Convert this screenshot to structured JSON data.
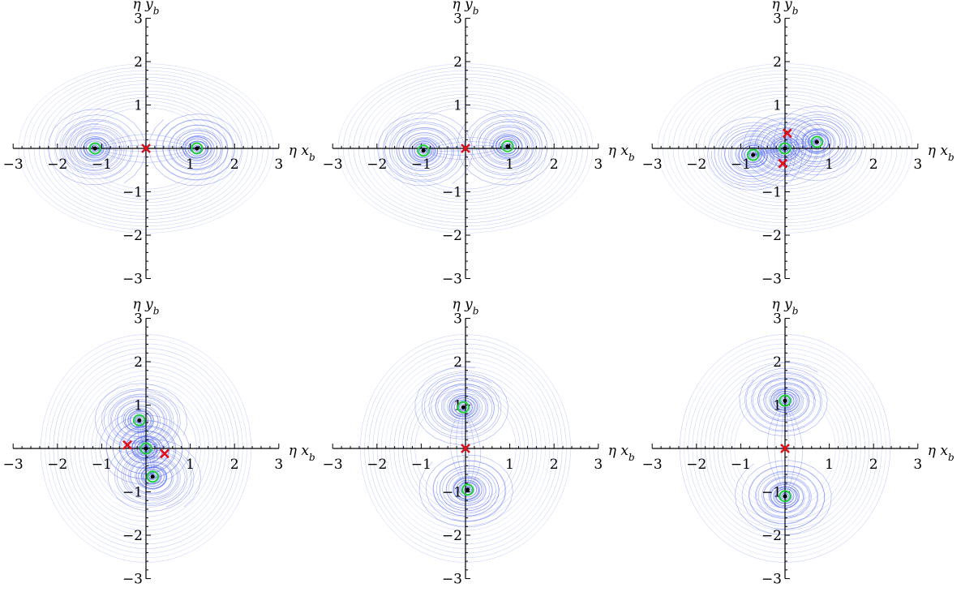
{
  "figure": {
    "colors": {
      "flow": "#5a6ff0",
      "node": "#1010a0",
      "fixed_point_center": "#000000",
      "fixed_point_ring": "#1fd13a",
      "saddle": "#e0101a",
      "axis": "#000000"
    }
  },
  "chart_data": [
    {
      "type": "scatter",
      "panel": "top-left",
      "xlabel": "η x_b",
      "ylabel": "η y_b",
      "xlim": [
        -3,
        3
      ],
      "ylim": [
        -3,
        3
      ],
      "x_ticks": [
        "−3",
        "−2",
        "−1",
        "1",
        "2",
        "3"
      ],
      "y_ticks": [
        "3",
        "2",
        "1",
        "−1",
        "−2",
        "−3"
      ],
      "grid": false,
      "stable_points": [
        {
          "x": -1.15,
          "y": 0.0
        },
        {
          "x": 1.15,
          "y": 0.0
        }
      ],
      "saddle_points": [
        {
          "x": 0.0,
          "y": 0.0
        }
      ]
    },
    {
      "type": "scatter",
      "panel": "top-middle",
      "xlabel": "η x_b",
      "ylabel": "η y_b",
      "xlim": [
        -3,
        3
      ],
      "ylim": [
        -3,
        3
      ],
      "x_ticks": [
        "−3",
        "−2",
        "−1",
        "1",
        "2",
        "3"
      ],
      "y_ticks": [
        "3",
        "2",
        "1",
        "−1",
        "−2",
        "−3"
      ],
      "grid": false,
      "stable_points": [
        {
          "x": -0.95,
          "y": -0.05
        },
        {
          "x": 0.95,
          "y": 0.05
        }
      ],
      "saddle_points": [
        {
          "x": 0.0,
          "y": 0.0
        }
      ]
    },
    {
      "type": "scatter",
      "panel": "top-right",
      "xlabel": "η x_b",
      "ylabel": "η y_b",
      "xlim": [
        -3,
        3
      ],
      "ylim": [
        -3,
        3
      ],
      "x_ticks": [
        "−3",
        "−2",
        "−1",
        "1",
        "2",
        "3"
      ],
      "y_ticks": [
        "3",
        "2",
        "1",
        "−1",
        "−2",
        "−3"
      ],
      "grid": false,
      "stable_points": [
        {
          "x": -0.72,
          "y": -0.15
        },
        {
          "x": 0.72,
          "y": 0.15
        },
        {
          "x": 0.0,
          "y": 0.0
        }
      ],
      "saddle_points": [
        {
          "x": 0.05,
          "y": 0.35
        },
        {
          "x": -0.05,
          "y": -0.35
        }
      ]
    },
    {
      "type": "scatter",
      "panel": "bottom-left",
      "xlabel": "η x_b",
      "ylabel": "η y_b",
      "xlim": [
        -3,
        3
      ],
      "ylim": [
        -3,
        3
      ],
      "x_ticks": [
        "−3",
        "−2",
        "−1",
        "1",
        "2",
        "3"
      ],
      "y_ticks": [
        "3",
        "2",
        "1",
        "−1",
        "−2",
        "−3"
      ],
      "grid": false,
      "stable_points": [
        {
          "x": -0.15,
          "y": 0.65
        },
        {
          "x": 0.15,
          "y": -0.65
        },
        {
          "x": 0.0,
          "y": 0.0
        }
      ],
      "saddle_points": [
        {
          "x": -0.42,
          "y": 0.08
        },
        {
          "x": 0.42,
          "y": -0.12
        }
      ]
    },
    {
      "type": "scatter",
      "panel": "bottom-middle",
      "xlabel": "η x_b",
      "ylabel": "η y_b",
      "xlim": [
        -3,
        3
      ],
      "ylim": [
        -3,
        3
      ],
      "x_ticks": [
        "−3",
        "−2",
        "−1",
        "1",
        "2",
        "3"
      ],
      "y_ticks": [
        "3",
        "2",
        "1",
        "−1",
        "−2",
        "−3"
      ],
      "grid": false,
      "stable_points": [
        {
          "x": -0.05,
          "y": 0.95
        },
        {
          "x": 0.05,
          "y": -0.95
        }
      ],
      "saddle_points": [
        {
          "x": 0.0,
          "y": 0.0
        }
      ]
    },
    {
      "type": "scatter",
      "panel": "bottom-right",
      "xlabel": "η x_b",
      "ylabel": "η y_b",
      "xlim": [
        -3,
        3
      ],
      "ylim": [
        -3,
        3
      ],
      "x_ticks": [
        "−3",
        "−2",
        "−1",
        "1",
        "2",
        "3"
      ],
      "y_ticks": [
        "3",
        "2",
        "1",
        "−1",
        "−2",
        "−3"
      ],
      "grid": false,
      "stable_points": [
        {
          "x": 0.0,
          "y": 1.1
        },
        {
          "x": 0.0,
          "y": -1.1
        }
      ],
      "saddle_points": [
        {
          "x": 0.0,
          "y": 0.0
        }
      ]
    }
  ]
}
